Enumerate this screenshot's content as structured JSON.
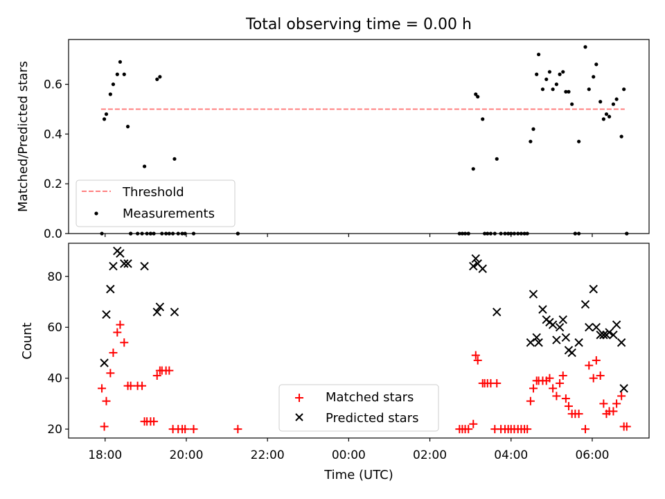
{
  "chart_data": [
    {
      "type": "scatter",
      "title": "Total observing time = 0.00 h",
      "ylabel": "Matched/Predicted stars",
      "xlabel": "",
      "ylim": [
        0,
        0.78
      ],
      "yticks": [
        "0.0",
        "0.2",
        "0.4",
        "0.6"
      ],
      "ytick_values": [
        0,
        0.2,
        0.4,
        0.6
      ],
      "threshold": {
        "name": "Threshold",
        "value": 0.5,
        "x_start": 17.9,
        "x_end": 30.8,
        "color": "#ff7f7f"
      },
      "legend": {
        "placement": "lower-left",
        "entries": [
          "Threshold",
          "Measurements"
        ]
      },
      "series": [
        {
          "name": "Measurements",
          "color": "#000000",
          "x": [
            17.92,
            17.98,
            18.03,
            18.13,
            18.2,
            18.3,
            18.37,
            18.47,
            18.56,
            18.63,
            18.97,
            19.12,
            19.28,
            19.35,
            19.71,
            21.27,
            26.95,
            27.07,
            27.13,
            27.18,
            27.3,
            27.65,
            28.48,
            28.55,
            28.63,
            28.68,
            28.78,
            28.87,
            28.95,
            29.03,
            29.12,
            29.2,
            29.28,
            29.35,
            29.42,
            29.5,
            29.58,
            29.67,
            29.83,
            29.92,
            30.03,
            30.1,
            30.2,
            30.28,
            30.35,
            30.42,
            30.52,
            30.6,
            30.72,
            30.78,
            30.85
          ],
          "y": [
            0.0,
            0.46,
            0.48,
            0.56,
            0.6,
            0.64,
            0.69,
            0.64,
            0.43,
            0.0,
            0.27,
            0.0,
            0.62,
            0.63,
            0.3,
            0.0,
            0.0,
            0.26,
            0.56,
            0.55,
            0.46,
            0.3,
            0.37,
            0.42,
            0.64,
            0.72,
            0.58,
            0.62,
            0.65,
            0.58,
            0.6,
            0.64,
            0.65,
            0.57,
            0.57,
            0.52,
            0.0,
            0.37,
            0.75,
            0.58,
            0.63,
            0.68,
            0.53,
            0.46,
            0.48,
            0.47,
            0.52,
            0.54,
            0.39,
            0.58,
            0.0
          ]
        },
        {
          "name": "",
          "color": "#000000",
          "x": [
            18.63,
            18.8,
            18.91,
            19.03,
            19.12,
            19.2,
            19.4,
            19.5,
            19.58,
            19.67,
            19.8,
            19.9,
            19.97,
            20.18,
            21.27,
            26.73,
            26.8,
            26.87,
            26.95,
            27.35,
            27.42,
            27.5,
            27.6,
            27.75,
            27.85,
            27.93,
            28.0,
            28.08,
            28.17,
            28.25,
            28.33,
            28.4,
            29.58,
            29.67,
            30.85
          ],
          "y": [
            0,
            0,
            0,
            0,
            0,
            0,
            0,
            0,
            0,
            0,
            0,
            0,
            0,
            0,
            0,
            0,
            0,
            0,
            0,
            0,
            0,
            0,
            0,
            0,
            0,
            0,
            0,
            0,
            0,
            0,
            0,
            0,
            0,
            0,
            0
          ]
        }
      ]
    },
    {
      "type": "scatter",
      "title": "",
      "ylabel": "Count",
      "xlabel": "Time (UTC)",
      "ylim": [
        16.5,
        93
      ],
      "yticks": [
        "20",
        "40",
        "60",
        "80"
      ],
      "ytick_values": [
        20,
        40,
        60,
        80
      ],
      "xlim": [
        17.1,
        31.4
      ],
      "xticks": [
        "18:00",
        "20:00",
        "22:00",
        "00:00",
        "02:00",
        "04:00",
        "06:00"
      ],
      "xtick_values": [
        18,
        20,
        22,
        24,
        26,
        28,
        30
      ],
      "legend": {
        "placement": "lower-center",
        "entries": [
          "Matched stars",
          "Predicted stars"
        ]
      },
      "series": [
        {
          "name": "Matched stars",
          "marker": "plus",
          "color": "#ff0000",
          "x": [
            17.92,
            17.98,
            18.03,
            18.13,
            18.2,
            18.3,
            18.37,
            18.47,
            18.56,
            18.63,
            18.8,
            18.91,
            18.97,
            19.03,
            19.12,
            19.2,
            19.28,
            19.35,
            19.4,
            19.5,
            19.58,
            19.67,
            19.8,
            19.9,
            19.97,
            20.18,
            21.27,
            26.73,
            26.8,
            26.87,
            26.95,
            27.07,
            27.13,
            27.18,
            27.3,
            27.35,
            27.42,
            27.5,
            27.6,
            27.65,
            27.75,
            27.85,
            27.93,
            28.0,
            28.08,
            28.17,
            28.25,
            28.33,
            28.4,
            28.48,
            28.55,
            28.63,
            28.68,
            28.78,
            28.87,
            28.95,
            29.03,
            29.12,
            29.2,
            29.28,
            29.35,
            29.42,
            29.5,
            29.58,
            29.67,
            29.83,
            29.92,
            30.03,
            30.1,
            30.2,
            30.28,
            30.35,
            30.42,
            30.52,
            30.6,
            30.72,
            30.78,
            30.85
          ],
          "y": [
            36,
            21,
            31,
            42,
            50,
            58,
            61,
            54,
            37,
            37,
            37,
            37,
            23,
            23,
            23,
            23,
            41,
            43,
            43,
            43,
            43,
            20,
            20,
            20,
            20,
            20,
            20,
            20,
            20,
            20,
            20,
            22,
            49,
            47,
            38,
            38,
            38,
            38,
            20,
            38,
            20,
            20,
            20,
            20,
            20,
            20,
            20,
            20,
            20,
            31,
            36,
            39,
            39,
            39,
            39,
            40,
            36,
            33,
            38,
            41,
            32,
            29,
            26,
            26,
            26,
            20,
            45,
            40,
            47,
            41,
            30,
            26,
            27,
            27,
            30,
            33,
            21,
            21
          ]
        },
        {
          "name": "Predicted stars",
          "marker": "x",
          "color": "#000000",
          "x": [
            17.98,
            18.03,
            18.13,
            18.2,
            18.3,
            18.37,
            18.47,
            18.56,
            18.97,
            19.28,
            19.35,
            19.71,
            27.07,
            27.13,
            27.18,
            27.3,
            27.65,
            28.48,
            28.55,
            28.63,
            28.68,
            28.78,
            28.87,
            28.95,
            29.03,
            29.12,
            29.2,
            29.28,
            29.35,
            29.42,
            29.5,
            29.67,
            29.83,
            29.92,
            30.03,
            30.1,
            30.2,
            30.28,
            30.35,
            30.42,
            30.52,
            30.6,
            30.72,
            30.78
          ],
          "y": [
            46,
            65,
            75,
            84,
            90,
            89,
            85,
            85,
            84,
            66,
            68,
            66,
            84,
            87,
            85,
            83,
            66,
            54,
            73,
            56,
            54,
            67,
            63,
            62,
            61,
            55,
            60,
            63,
            56,
            51,
            50,
            54,
            69,
            60,
            75,
            60,
            57,
            57,
            57,
            58,
            57,
            61,
            54,
            36
          ]
        }
      ]
    }
  ]
}
